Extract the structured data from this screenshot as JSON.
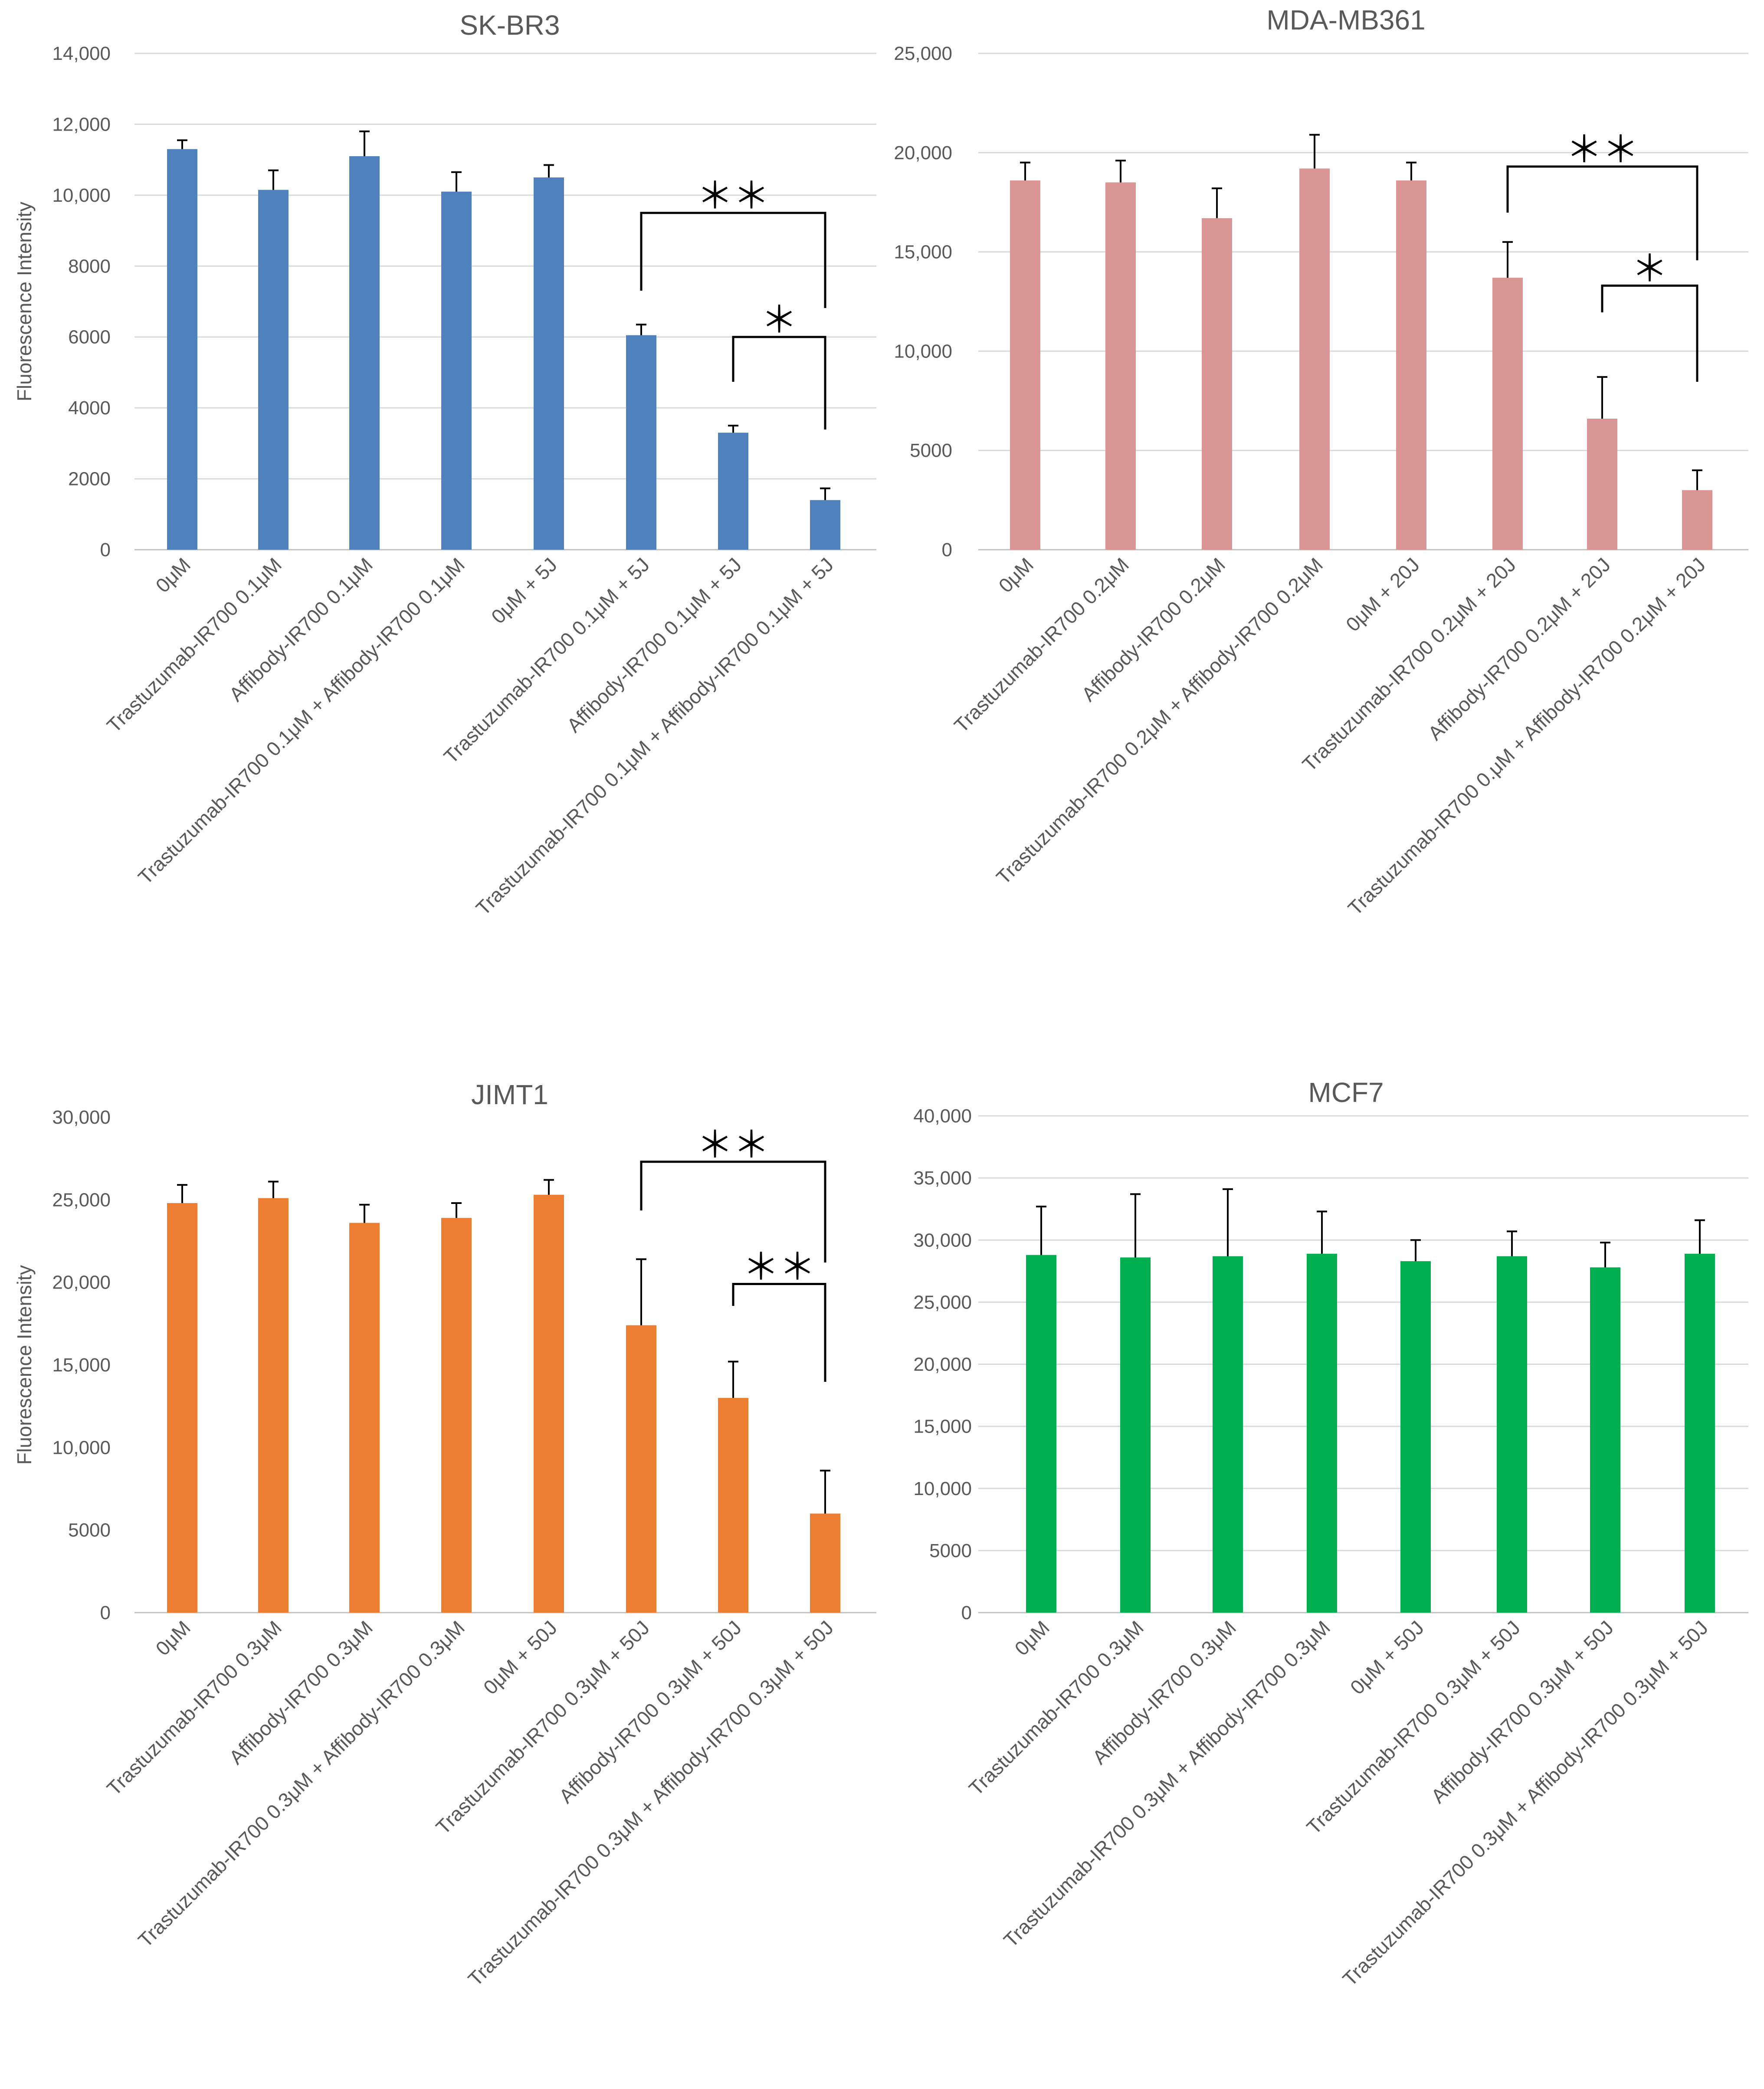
{
  "chart_data": [
    {
      "type": "bar",
      "title": "SK-BR3",
      "ylabel": "Fluorescence Intensity",
      "xlabel": "",
      "ylim": [
        0,
        14000
      ],
      "yticks": [
        0,
        2000,
        4000,
        6000,
        8000,
        10000,
        12000,
        14000
      ],
      "ytick_labels": [
        "0",
        "2000",
        "4000",
        "6000",
        "8000",
        "10,000",
        "12,000",
        "14,000"
      ],
      "color": "#4f81bd",
      "grid": true,
      "categories": [
        "0μM",
        "Trastuzumab-IR700 0.1μM",
        "Affibody-IR700 0.1μM",
        "Trastuzumab-IR700 0.1μM + Affibody-IR700 0.1μM",
        "0μM + 5J",
        "Trastuzumab-IR700 0.1μM + 5J",
        "Affibody-IR700 0.1μM + 5J",
        "Trastuzumab-IR700 0.1μM + Affibody-IR700 0.1μM + 5J"
      ],
      "values": [
        11300,
        10150,
        11100,
        10100,
        10500,
        6050,
        3300,
        1400
      ],
      "errors": [
        250,
        550,
        700,
        550,
        350,
        300,
        200,
        330
      ],
      "significance": [
        {
          "from": 5,
          "to": 7,
          "label": "＊＊",
          "level": 9500
        },
        {
          "from": 6,
          "to": 7,
          "label": "＊",
          "level": 6000
        }
      ]
    },
    {
      "type": "bar",
      "title": "MDA-MB361",
      "ylabel": "",
      "xlabel": "",
      "ylim": [
        0,
        25000
      ],
      "yticks": [
        0,
        5000,
        10000,
        15000,
        20000,
        25000
      ],
      "ytick_labels": [
        "0",
        "5000",
        "10,000",
        "15,000",
        "20,000",
        "25,000"
      ],
      "color": "#da9694",
      "grid": true,
      "categories": [
        "0μM",
        "Trastuzumab-IR700 0.2μM",
        "Affibody-IR700 0.2μM",
        "Trastuzumab-IR700 0.2μM + Affibody-IR700 0.2μM",
        "0μM + 20J",
        "Trastuzumab-IR700 0.2μM + 20J",
        "Affibody-IR700 0.2μM + 20J",
        "Trastuzumab-IR700 0.μM + Affibody-IR700 0.2μM + 20J"
      ],
      "values": [
        18600,
        18500,
        16700,
        19200,
        18600,
        13700,
        6600,
        3000
      ],
      "errors": [
        900,
        1100,
        1500,
        1700,
        900,
        1800,
        2100,
        1000
      ],
      "significance": [
        {
          "from": 5,
          "to": 7,
          "label": "＊＊",
          "level": 19300
        },
        {
          "from": 6,
          "to": 7,
          "label": "＊",
          "level": 13300
        }
      ]
    },
    {
      "type": "bar",
      "title": "JIMT1",
      "ylabel": "Fluorescence Intensity",
      "xlabel": "",
      "ylim": [
        0,
        30000
      ],
      "yticks": [
        0,
        5000,
        10000,
        15000,
        20000,
        25000,
        30000
      ],
      "ytick_labels": [
        "0",
        "5000",
        "10,000",
        "15,000",
        "20,000",
        "25,000",
        "30,000"
      ],
      "color": "#ed7d31",
      "grid": false,
      "categories": [
        "0μM",
        "Trastuzumab-IR700 0.3μM",
        "Affibody-IR700 0.3μM",
        "Trastuzumab-IR700 0.3μM + Affibody-IR700 0.3μM",
        "0μM + 50J",
        "Trastuzumab-IR700 0.3μM + 50J",
        "Affibody-IR700 0.3μM + 50J",
        "Trastuzumab-IR700 0.3μM + Affibody-IR700 0.3μM + 50J"
      ],
      "values": [
        24800,
        25100,
        23600,
        23900,
        25300,
        17400,
        13000,
        6000
      ],
      "errors": [
        1100,
        1000,
        1100,
        900,
        900,
        4000,
        2200,
        2600
      ],
      "significance": [
        {
          "from": 5,
          "to": 7,
          "label": "＊＊",
          "level": 27300
        },
        {
          "from": 6,
          "to": 7,
          "label": "＊＊",
          "level": 19900
        }
      ]
    },
    {
      "type": "bar",
      "title": "MCF7",
      "ylabel": "",
      "xlabel": "",
      "ylim": [
        0,
        40000
      ],
      "yticks": [
        0,
        5000,
        10000,
        15000,
        20000,
        25000,
        30000,
        35000,
        40000
      ],
      "ytick_labels": [
        "0",
        "5000",
        "10,000",
        "15,000",
        "20,000",
        "25,000",
        "30,000",
        "35,000",
        "40,000"
      ],
      "color": "#00b050",
      "grid": true,
      "categories": [
        "0μM",
        "Trastuzumab-IR700 0.3μM",
        "Affibody-IR700 0.3μM",
        "Trastuzumab-IR700 0.3μM + Affibody-IR700 0.3μM",
        "0μM + 50J",
        "Trastuzumab-IR700 0.3μM + 50J",
        "Affibody-IR700 0.3μM + 50J",
        "Trastuzumab-IR700 0.3μM + Affibody-IR700 0.3μM + 50J"
      ],
      "values": [
        28800,
        28600,
        28700,
        28900,
        28300,
        28700,
        27800,
        28900
      ],
      "errors": [
        3900,
        5100,
        5400,
        3400,
        1700,
        2000,
        2000,
        2700
      ],
      "significance": []
    }
  ]
}
